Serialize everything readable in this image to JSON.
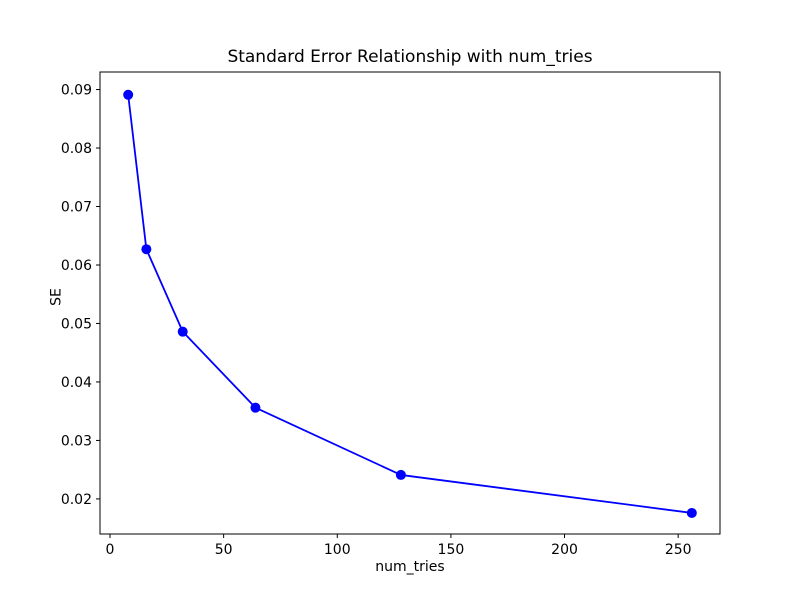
{
  "figure": {
    "background": "#ffffff"
  },
  "chart_data": {
    "type": "line",
    "title": "Standard Error Relationship with num_tries",
    "xlabel": "num_tries",
    "ylabel": "SE",
    "x": [
      8,
      16,
      32,
      64,
      128,
      256
    ],
    "y": [
      0.0891,
      0.0627,
      0.0486,
      0.0356,
      0.0241,
      0.0176
    ],
    "line_color": "#0000ff",
    "marker": "circle",
    "marker_radius": 5,
    "line_width": 1.8,
    "grid": false,
    "legend": null,
    "xlim": [
      -4.4,
      268.4
    ],
    "ylim": [
      0.014,
      0.093
    ],
    "xticks": [
      {
        "v": 0,
        "label": "0"
      },
      {
        "v": 50,
        "label": "50"
      },
      {
        "v": 100,
        "label": "100"
      },
      {
        "v": 150,
        "label": "150"
      },
      {
        "v": 200,
        "label": "200"
      },
      {
        "v": 250,
        "label": "250"
      }
    ],
    "yticks": [
      {
        "v": 0.02,
        "label": "0.02"
      },
      {
        "v": 0.03,
        "label": "0.03"
      },
      {
        "v": 0.04,
        "label": "0.04"
      },
      {
        "v": 0.05,
        "label": "0.05"
      },
      {
        "v": 0.06,
        "label": "0.06"
      },
      {
        "v": 0.07,
        "label": "0.07"
      },
      {
        "v": 0.08,
        "label": "0.08"
      },
      {
        "v": 0.09,
        "label": "0.09"
      }
    ],
    "frame_color": "#000000",
    "text_color": "#000000"
  }
}
